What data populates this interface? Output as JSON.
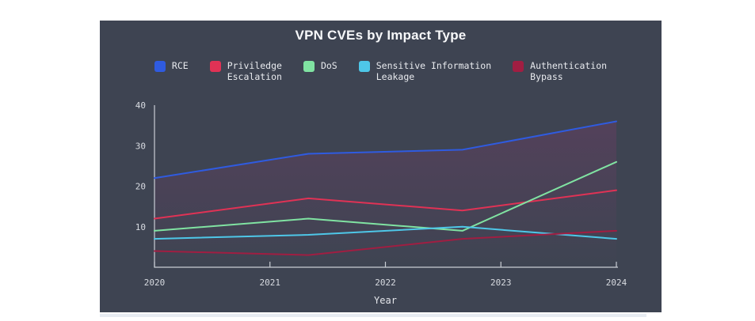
{
  "card": {
    "background": "#3e4452"
  },
  "title": "VPN CVEs by Impact Type",
  "legend": {
    "items": [
      {
        "label": "RCE",
        "color": "#2f5be0"
      },
      {
        "label": "Priviledge\nEscalation",
        "color": "#e03255"
      },
      {
        "label": "DoS",
        "color": "#80e3a2"
      },
      {
        "label": "Sensitive Information\nLeakage",
        "color": "#4ec7e8"
      },
      {
        "label": "Authentication\nBypass",
        "color": "#a01e42"
      }
    ]
  },
  "chart_data": {
    "type": "line",
    "title": "VPN CVEs by Impact Type",
    "xlabel": "Year",
    "x_tick_labels": [
      "2020",
      "2021",
      "2022",
      "2023",
      "2024"
    ],
    "x": [
      2020,
      2021.33,
      2022.67,
      2024
    ],
    "y_ticks": [
      10,
      20,
      30,
      40
    ],
    "ylim": [
      0,
      40
    ],
    "grid": false,
    "legend_position": "top",
    "axis_color": "#c9cdd4",
    "tick_label_color": "#d8dbe1",
    "series": [
      {
        "name": "RCE",
        "color": "#2f5be0",
        "values": [
          22,
          28,
          29,
          36
        ],
        "area_fill": true
      },
      {
        "name": "Priviledge Escalation",
        "color": "#e03255",
        "values": [
          12,
          17,
          14,
          19
        ]
      },
      {
        "name": "DoS",
        "color": "#80e3a2",
        "values": [
          9,
          12,
          9,
          26
        ]
      },
      {
        "name": "Sensitive Information Leakage",
        "color": "#4ec7e8",
        "values": [
          7,
          8,
          10,
          7
        ]
      },
      {
        "name": "Authentication Bypass",
        "color": "#a01e42",
        "values": [
          4,
          3,
          7,
          9
        ]
      }
    ]
  }
}
